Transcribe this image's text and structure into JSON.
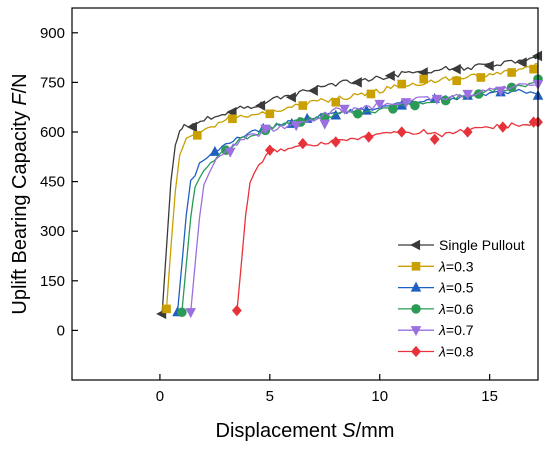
{
  "chart_data": {
    "type": "line",
    "xlabel": "Displacement ",
    "xlabel_var": "S",
    "xlabel_unit": "/mm",
    "ylabel": "Uplift  Bearing Capacity ",
    "ylabel_var": "F",
    "ylabel_unit": "/N",
    "xlim": [
      -4,
      17.2
    ],
    "ylim": [
      -150,
      975
    ],
    "x_ticks": [
      0,
      5,
      10,
      15
    ],
    "y_ticks": [
      0,
      150,
      300,
      450,
      600,
      750,
      900
    ],
    "legend_position": "bottom-right",
    "series": [
      {
        "name": "Single Pullout",
        "symbol": "",
        "suffix": "Single Pullout",
        "color": "#3a3a3a",
        "marker": "triangle-left",
        "points": [
          [
            0.1,
            50
          ],
          [
            0.3,
            250
          ],
          [
            0.5,
            450
          ],
          [
            0.7,
            560
          ],
          [
            0.9,
            600
          ],
          [
            1.1,
            615
          ],
          [
            1.5,
            620
          ],
          [
            2,
            635
          ],
          [
            2.5,
            650
          ],
          [
            3.3,
            665
          ],
          [
            4,
            675
          ],
          [
            4.6,
            685
          ],
          [
            5,
            695
          ],
          [
            6,
            710
          ],
          [
            7,
            730
          ],
          [
            8,
            745
          ],
          [
            9,
            755
          ],
          [
            10,
            765
          ],
          [
            11,
            775
          ],
          [
            12,
            780
          ],
          [
            13,
            790
          ],
          [
            14,
            795
          ],
          [
            15,
            805
          ],
          [
            16,
            810
          ],
          [
            17,
            820
          ],
          [
            17.2,
            830
          ]
        ],
        "marker_points": [
          [
            0.1,
            50
          ],
          [
            1.5,
            615
          ],
          [
            3.3,
            660
          ],
          [
            4.6,
            680
          ],
          [
            6,
            705
          ],
          [
            7,
            725
          ],
          [
            9,
            750
          ],
          [
            10.5,
            770
          ],
          [
            12,
            780
          ],
          [
            13.5,
            790
          ],
          [
            15,
            800
          ],
          [
            16.5,
            810
          ],
          [
            17.2,
            830
          ]
        ]
      },
      {
        "name": "λ=0.3",
        "symbol": "λ",
        "suffix": "=0.3",
        "color": "#c9a000",
        "marker": "square",
        "points": [
          [
            0.3,
            65
          ],
          [
            0.5,
            250
          ],
          [
            0.7,
            420
          ],
          [
            0.9,
            530
          ],
          [
            1.2,
            580
          ],
          [
            1.7,
            595
          ],
          [
            2.5,
            620
          ],
          [
            3,
            640
          ],
          [
            4,
            650
          ],
          [
            5,
            660
          ],
          [
            6,
            675
          ],
          [
            7,
            690
          ],
          [
            8,
            700
          ],
          [
            9,
            710
          ],
          [
            10,
            725
          ],
          [
            11,
            740
          ],
          [
            12,
            750
          ],
          [
            13,
            760
          ],
          [
            14,
            765
          ],
          [
            15,
            775
          ],
          [
            16,
            785
          ],
          [
            17,
            795
          ],
          [
            17.2,
            805
          ]
        ],
        "marker_points": [
          [
            0.3,
            65
          ],
          [
            1.7,
            590
          ],
          [
            3.3,
            640
          ],
          [
            5,
            655
          ],
          [
            6.5,
            680
          ],
          [
            8,
            690
          ],
          [
            9.6,
            715
          ],
          [
            11,
            745
          ],
          [
            12,
            760
          ],
          [
            13.5,
            755
          ],
          [
            14.6,
            765
          ],
          [
            16,
            780
          ],
          [
            17,
            790
          ]
        ]
      },
      {
        "name": "λ=0.5",
        "symbol": "λ",
        "suffix": "=0.5",
        "color": "#1f5fc2",
        "marker": "triangle-up",
        "points": [
          [
            0.8,
            55
          ],
          [
            1,
            200
          ],
          [
            1.2,
            350
          ],
          [
            1.4,
            450
          ],
          [
            1.8,
            500
          ],
          [
            2.5,
            540
          ],
          [
            3.5,
            580
          ],
          [
            4.5,
            605
          ],
          [
            5.5,
            625
          ],
          [
            6.5,
            640
          ],
          [
            7.5,
            650
          ],
          [
            8.5,
            660
          ],
          [
            9.5,
            670
          ],
          [
            10.5,
            680
          ],
          [
            11.5,
            690
          ],
          [
            12.5,
            700
          ],
          [
            13.5,
            705
          ],
          [
            14.5,
            715
          ],
          [
            15.5,
            720
          ],
          [
            16.5,
            725
          ],
          [
            17.2,
            715
          ]
        ],
        "marker_points": [
          [
            0.8,
            55
          ],
          [
            2.5,
            540
          ],
          [
            4.7,
            610
          ],
          [
            6,
            625
          ],
          [
            6.7,
            640
          ],
          [
            8,
            650
          ],
          [
            9.4,
            665
          ],
          [
            11,
            680
          ],
          [
            12.5,
            700
          ],
          [
            14,
            710
          ],
          [
            15.5,
            720
          ],
          [
            17.2,
            710
          ]
        ]
      },
      {
        "name": "λ=0.6",
        "symbol": "λ",
        "suffix": "=0.6",
        "color": "#2a9a55",
        "marker": "circle",
        "points": [
          [
            1,
            55
          ],
          [
            1.2,
            200
          ],
          [
            1.4,
            340
          ],
          [
            1.6,
            440
          ],
          [
            2,
            490
          ],
          [
            2.8,
            540
          ],
          [
            3.8,
            580
          ],
          [
            4.8,
            610
          ],
          [
            5.8,
            630
          ],
          [
            6.8,
            640
          ],
          [
            7.8,
            650
          ],
          [
            8.8,
            660
          ],
          [
            9.8,
            665
          ],
          [
            10.8,
            675
          ],
          [
            11.8,
            690
          ],
          [
            12.8,
            700
          ],
          [
            13.8,
            710
          ],
          [
            14.8,
            720
          ],
          [
            15.8,
            730
          ],
          [
            16.8,
            745
          ],
          [
            17.2,
            760
          ]
        ],
        "marker_points": [
          [
            1,
            55
          ],
          [
            3,
            545
          ],
          [
            4.8,
            605
          ],
          [
            6.4,
            630
          ],
          [
            7.5,
            645
          ],
          [
            9,
            655
          ],
          [
            10.6,
            670
          ],
          [
            11.6,
            680
          ],
          [
            13,
            695
          ],
          [
            14.5,
            715
          ],
          [
            16,
            735
          ],
          [
            17.2,
            760
          ]
        ]
      },
      {
        "name": "λ=0.7",
        "symbol": "λ",
        "suffix": "=0.7",
        "color": "#9a6fe0",
        "marker": "triangle-down",
        "points": [
          [
            1.4,
            55
          ],
          [
            1.6,
            200
          ],
          [
            1.8,
            340
          ],
          [
            2,
            440
          ],
          [
            2.4,
            500
          ],
          [
            3,
            545
          ],
          [
            4,
            585
          ],
          [
            5,
            605
          ],
          [
            6,
            620
          ],
          [
            7,
            640
          ],
          [
            8,
            665
          ],
          [
            9,
            670
          ],
          [
            10,
            680
          ],
          [
            11,
            690
          ],
          [
            12,
            700
          ],
          [
            13,
            705
          ],
          [
            14,
            715
          ],
          [
            15,
            725
          ],
          [
            16,
            735
          ],
          [
            17,
            745
          ],
          [
            17.2,
            750
          ]
        ],
        "marker_points": [
          [
            1.4,
            55
          ],
          [
            3.2,
            540
          ],
          [
            4.8,
            610
          ],
          [
            6.2,
            620
          ],
          [
            7.5,
            625
          ],
          [
            8.4,
            670
          ],
          [
            10,
            685
          ],
          [
            11.2,
            690
          ],
          [
            12.6,
            700
          ],
          [
            14,
            715
          ],
          [
            15.5,
            725
          ],
          [
            17.2,
            745
          ]
        ]
      },
      {
        "name": "λ=0.8",
        "symbol": "λ",
        "suffix": "=0.8",
        "color": "#e8323a",
        "marker": "diamond",
        "points": [
          [
            3.5,
            55
          ],
          [
            3.7,
            200
          ],
          [
            3.9,
            350
          ],
          [
            4.1,
            440
          ],
          [
            4.5,
            500
          ],
          [
            5,
            540
          ],
          [
            6,
            555
          ],
          [
            7,
            565
          ],
          [
            8,
            570
          ],
          [
            9,
            580
          ],
          [
            10,
            590
          ],
          [
            11,
            600
          ],
          [
            12,
            600
          ],
          [
            13,
            590
          ],
          [
            14,
            605
          ],
          [
            15,
            615
          ],
          [
            16,
            620
          ],
          [
            17,
            630
          ],
          [
            17.2,
            630
          ]
        ],
        "marker_points": [
          [
            3.5,
            60
          ],
          [
            5,
            545
          ],
          [
            6.5,
            565
          ],
          [
            8,
            570
          ],
          [
            9.5,
            585
          ],
          [
            11,
            600
          ],
          [
            12.5,
            578
          ],
          [
            14,
            600
          ],
          [
            15.6,
            615
          ],
          [
            17,
            630
          ],
          [
            17.2,
            630
          ]
        ]
      }
    ]
  }
}
